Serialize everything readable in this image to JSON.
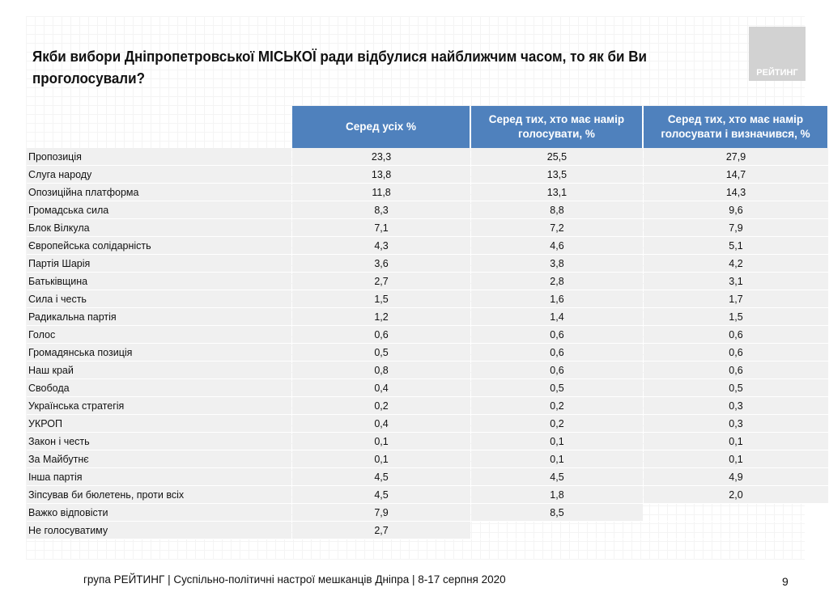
{
  "title": "Якби вибори Дніпропетровської МІСЬКОЇ ради відбулися найближчим часом, то як би Ви проголосували?",
  "logo_text": "РЕЙТИНГ",
  "columns": [
    "Серед усіх %",
    "Серед тих, хто має намір голосувати, %",
    "Серед тих, хто має намір голосувати і визначився, %"
  ],
  "rows": [
    {
      "label": "Пропозиція",
      "values": [
        "23,3",
        "25,5",
        "27,9"
      ]
    },
    {
      "label": "Слуга народу",
      "values": [
        "13,8",
        "13,5",
        "14,7"
      ]
    },
    {
      "label": "Опозиційна платформа",
      "values": [
        "11,8",
        "13,1",
        "14,3"
      ]
    },
    {
      "label": "Громадська сила",
      "values": [
        "8,3",
        "8,8",
        "9,6"
      ]
    },
    {
      "label": "Блок Вілкула",
      "values": [
        "7,1",
        "7,2",
        "7,9"
      ]
    },
    {
      "label": "Європейська солідарність",
      "values": [
        "4,3",
        "4,6",
        "5,1"
      ]
    },
    {
      "label": "Партія Шарія",
      "values": [
        "3,6",
        "3,8",
        "4,2"
      ]
    },
    {
      "label": "Батьківщина",
      "values": [
        "2,7",
        "2,8",
        "3,1"
      ]
    },
    {
      "label": "Сила і честь",
      "values": [
        "1,5",
        "1,6",
        "1,7"
      ]
    },
    {
      "label": "Радикальна партія",
      "values": [
        "1,2",
        "1,4",
        "1,5"
      ]
    },
    {
      "label": "Голос",
      "values": [
        "0,6",
        "0,6",
        "0,6"
      ]
    },
    {
      "label": "Громадянська позиція",
      "values": [
        "0,5",
        "0,6",
        "0,6"
      ]
    },
    {
      "label": "Наш край",
      "values": [
        "0,8",
        "0,6",
        "0,6"
      ]
    },
    {
      "label": "Свобода",
      "values": [
        "0,4",
        "0,5",
        "0,5"
      ]
    },
    {
      "label": "Українська стратегія",
      "values": [
        "0,2",
        "0,2",
        "0,3"
      ]
    },
    {
      "label": "УКРОП",
      "values": [
        "0,4",
        "0,2",
        "0,3"
      ]
    },
    {
      "label": "Закон і честь",
      "values": [
        "0,1",
        "0,1",
        "0,1"
      ]
    },
    {
      "label": "За Майбутнє",
      "values": [
        "0,1",
        "0,1",
        "0,1"
      ]
    },
    {
      "label": "Інша партія",
      "values": [
        "4,5",
        "4,5",
        "4,9"
      ]
    },
    {
      "label": "Зіпсував би бюлетень, проти всіх",
      "values": [
        "4,5",
        "1,8",
        "2,0"
      ]
    },
    {
      "label": "Важко відповісти",
      "values": [
        "7,9",
        "8,5"
      ]
    },
    {
      "label": "Не голосуватиму",
      "values": [
        "2,7"
      ]
    }
  ],
  "footer": "група РЕЙТИНГ  | Суспільно-політичні настрої мешканців Дніпра | 8-17 серпня 2020",
  "page_number": "9"
}
